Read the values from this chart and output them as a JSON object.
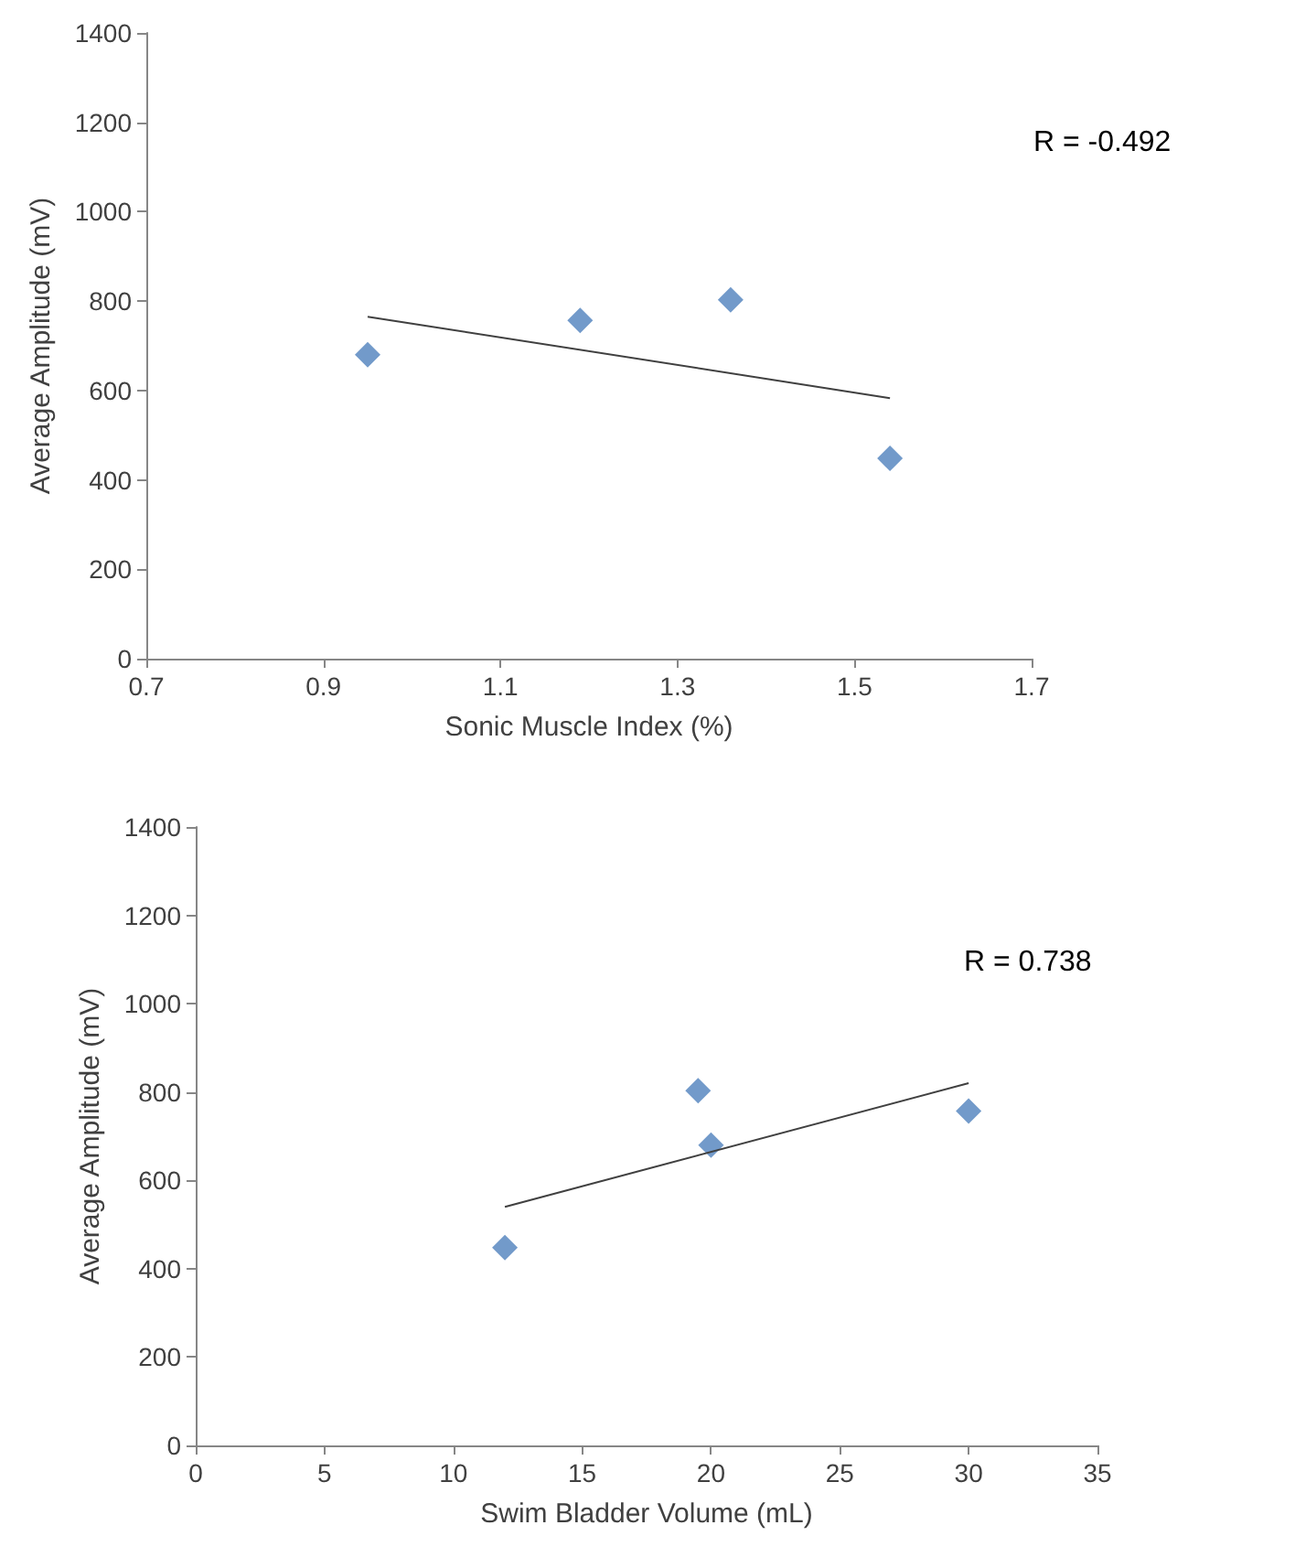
{
  "chart_data": [
    {
      "type": "scatter",
      "xlabel": "Sonic Muscle Index (%)",
      "ylabel": "Average Amplitude (mV)",
      "annotations": [
        "R = -0.492"
      ],
      "xlim": [
        0.7,
        1.7
      ],
      "xticks": [
        0.7,
        0.9,
        1.1,
        1.3,
        1.5,
        1.7
      ],
      "ylim": [
        0,
        1400
      ],
      "yticks": [
        0,
        200,
        400,
        600,
        800,
        1000,
        1200,
        1400
      ],
      "grid": false,
      "marker": "diamond",
      "series": [
        {
          "color": "#4f81bd",
          "x": [
            0.95,
            1.19,
            1.36,
            1.54
          ],
          "values": [
            680,
            757,
            803,
            448
          ]
        },
        {
          "type": "line",
          "color": "#404040",
          "line_style": "solid",
          "marker": "none",
          "x": [
            0.95,
            1.54
          ],
          "values": [
            765,
            583
          ]
        }
      ]
    },
    {
      "type": "scatter",
      "xlabel": "Swim Bladder Volume (mL)",
      "ylabel": "Average Amplitude (mV)",
      "annotations": [
        "R = 0.738"
      ],
      "xlim": [
        0,
        35
      ],
      "xticks": [
        0,
        5,
        10,
        15,
        20,
        25,
        30,
        35
      ],
      "ylim": [
        0,
        1400
      ],
      "yticks": [
        0,
        200,
        400,
        600,
        800,
        1000,
        1200,
        1400
      ],
      "grid": false,
      "marker": "diamond",
      "series": [
        {
          "color": "#4f81bd",
          "x": [
            12,
            19.5,
            20,
            30
          ],
          "values": [
            448,
            803,
            680,
            757
          ]
        },
        {
          "type": "line",
          "color": "#404040",
          "line_style": "solid",
          "marker": "none",
          "x": [
            12,
            30
          ],
          "values": [
            540,
            820
          ]
        }
      ]
    }
  ]
}
